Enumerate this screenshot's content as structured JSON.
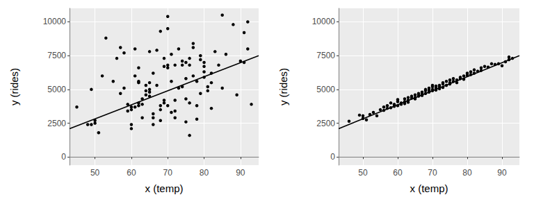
{
  "chart_data": [
    {
      "type": "scatter",
      "xlabel": "x (temp)",
      "ylabel": "y (rides)",
      "xlim": [
        43,
        95
      ],
      "ylim": [
        -600,
        11000
      ],
      "xticks": [
        50,
        60,
        70,
        80,
        90
      ],
      "yticks": [
        0,
        2500,
        5000,
        7500,
        10000
      ],
      "grid": true,
      "series": [
        {
          "type": "scatter",
          "marker": "circle",
          "color": "#000000",
          "x": [
            45,
            48,
            49,
            49,
            50,
            51,
            50,
            52,
            53,
            55,
            56,
            57,
            57,
            58,
            58,
            59,
            59,
            60,
            60,
            60,
            60,
            61,
            61,
            61,
            62,
            62,
            62,
            62,
            62,
            63,
            63,
            63,
            64,
            64,
            64,
            65,
            65,
            65,
            65,
            65,
            66,
            66,
            66,
            66,
            67,
            67,
            68,
            68,
            68,
            68,
            69,
            69,
            69,
            69,
            70,
            70,
            70,
            70,
            70,
            71,
            71,
            71,
            72,
            72,
            72,
            72,
            73,
            73,
            74,
            74,
            74,
            75,
            75,
            75,
            75,
            76,
            76,
            76,
            76,
            77,
            77,
            77,
            78,
            78,
            78,
            79,
            79,
            79,
            80,
            80,
            80,
            80,
            81,
            81,
            82,
            82,
            82,
            83,
            84,
            85,
            85,
            86,
            88,
            89,
            90,
            91,
            91,
            92,
            92,
            93
          ],
          "values": [
            3700,
            2400,
            2400,
            5000,
            2500,
            1800,
            2700,
            6000,
            8800,
            5600,
            7300,
            8100,
            4700,
            7700,
            5100,
            3400,
            3900,
            3500,
            2100,
            2400,
            3700,
            6000,
            8000,
            3700,
            5500,
            6600,
            5600,
            3800,
            4000,
            3900,
            4300,
            2900,
            4600,
            5300,
            4900,
            4500,
            4800,
            5000,
            7800,
            5500,
            3200,
            2400,
            2900,
            6200,
            5300,
            7900,
            3800,
            3500,
            9300,
            2700,
            4000,
            4200,
            6700,
            7300,
            10400,
            6800,
            6600,
            9500,
            3800,
            3300,
            7600,
            5600,
            6800,
            3400,
            2900,
            4200,
            5100,
            8000,
            5200,
            7100,
            6800,
            7000,
            5800,
            4300,
            2600,
            7300,
            6800,
            1600,
            4000,
            8400,
            6000,
            8100,
            5600,
            2800,
            3800,
            4700,
            7500,
            7200,
            6300,
            5900,
            6700,
            7000,
            4900,
            5200,
            5500,
            6200,
            3600,
            7800,
            6800,
            10500,
            5100,
            7600,
            9800,
            4600,
            7100,
            7000,
            9200,
            8000,
            10000,
            3900
          ]
        },
        {
          "type": "line",
          "line_style": "solid",
          "color": "#000000",
          "x": [
            43,
            95
          ],
          "values": [
            2100,
            7500
          ]
        }
      ]
    },
    {
      "type": "scatter",
      "xlabel": "x (temp)",
      "ylabel": "y (rides)",
      "xlim": [
        43,
        95
      ],
      "ylim": [
        -600,
        11000
      ],
      "xticks": [
        50,
        60,
        70,
        80,
        90
      ],
      "yticks": [
        0,
        2500,
        5000,
        7500,
        10000
      ],
      "grid": true,
      "series": [
        {
          "type": "scatter",
          "marker": "circle",
          "color": "#000000",
          "x": [
            46,
            49,
            50,
            50,
            51,
            52,
            53,
            54,
            55,
            56,
            56,
            57,
            57,
            58,
            58,
            59,
            59,
            60,
            60,
            60,
            61,
            61,
            62,
            62,
            62,
            63,
            63,
            63,
            64,
            64,
            65,
            65,
            65,
            66,
            66,
            66,
            67,
            67,
            67,
            68,
            68,
            68,
            69,
            69,
            69,
            70,
            70,
            70,
            70,
            71,
            71,
            71,
            72,
            72,
            72,
            73,
            73,
            73,
            74,
            74,
            75,
            75,
            75,
            76,
            76,
            77,
            77,
            78,
            78,
            79,
            79,
            80,
            80,
            81,
            81,
            82,
            82,
            83,
            84,
            84,
            85,
            86,
            87,
            88,
            89,
            90,
            91,
            92,
            92,
            93
          ],
          "values": [
            2650,
            3100,
            2850,
            3050,
            2750,
            3150,
            3300,
            3050,
            3500,
            3700,
            3450,
            3800,
            3600,
            3650,
            4000,
            3750,
            3900,
            3800,
            4100,
            4250,
            4000,
            3900,
            4300,
            4100,
            3950,
            4200,
            4400,
            4050,
            4350,
            4500,
            4400,
            4600,
            4300,
            4500,
            4700,
            4600,
            4800,
            4650,
            4550,
            4900,
            4700,
            5000,
            4950,
            4800,
            5100,
            5000,
            5300,
            4900,
            5200,
            5100,
            5250,
            4950,
            5300,
            5200,
            5050,
            5400,
            5150,
            5500,
            5300,
            5600,
            5400,
            5700,
            5500,
            5600,
            5800,
            5700,
            5500,
            5800,
            5900,
            6000,
            5750,
            6050,
            6200,
            6100,
            6300,
            6200,
            6450,
            6350,
            6400,
            6600,
            6700,
            6650,
            6900,
            6850,
            6900,
            6750,
            7050,
            7200,
            7400,
            7300
          ]
        },
        {
          "type": "line",
          "line_style": "solid",
          "color": "#000000",
          "x": [
            43,
            95
          ],
          "values": [
            2100,
            7500
          ]
        }
      ]
    }
  ]
}
